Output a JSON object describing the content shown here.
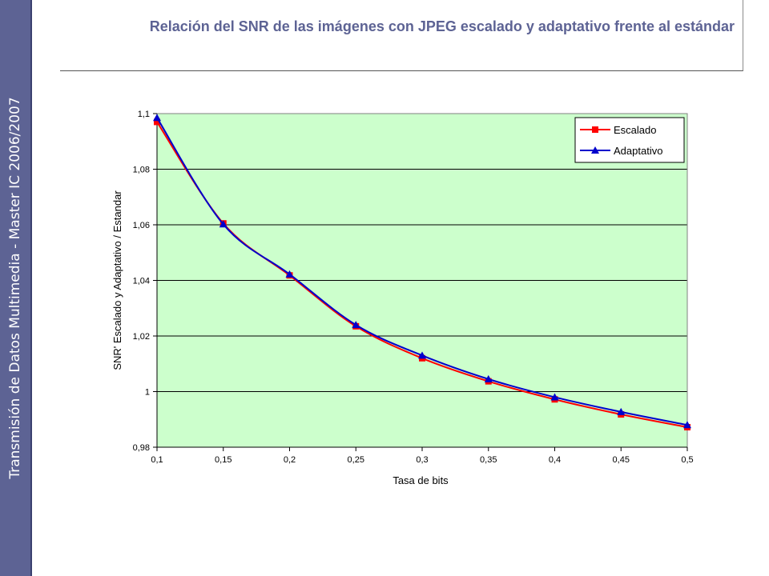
{
  "sidebar": {
    "text": "Transmisión de Datos Multimedia - Master IC 2006/2007"
  },
  "header": {
    "title": "Relación del SNR de las imágenes con JPEG escalado y adaptativo frente al estándar"
  },
  "chart_data": {
    "type": "line",
    "x": [
      0.1,
      0.15,
      0.2,
      0.25,
      0.3,
      0.35,
      0.4,
      0.45,
      0.5
    ],
    "x_tick_labels": [
      "0,1",
      "0,15",
      "0,2",
      "0,25",
      "0,3",
      "0,35",
      "0,4",
      "0,45",
      "0,5"
    ],
    "y_ticks": [
      0.98,
      1.0,
      1.02,
      1.04,
      1.06,
      1.08,
      1.1
    ],
    "y_tick_labels": [
      "0,98",
      "1",
      "1,02",
      "1,04",
      "1,06",
      "1,08",
      "1,1"
    ],
    "xlim": [
      0.1,
      0.5
    ],
    "ylim": [
      0.98,
      1.1
    ],
    "xlabel": "Tasa de bits",
    "ylabel": "SNR' Escalado y Adaptativo / Estandar",
    "grid": "horizontal",
    "legend_position": "top-right",
    "plot_background": "#ccffcc",
    "series": [
      {
        "name": "Escalado",
        "color": "#ff0000",
        "marker": "square",
        "values": [
          1.097,
          1.0605,
          1.0418,
          1.0235,
          1.012,
          1.0037,
          0.9972,
          0.9918,
          0.9872
        ]
      },
      {
        "name": "Adaptativo",
        "color": "#0000cc",
        "marker": "triangle",
        "values": [
          1.0985,
          1.0602,
          1.0422,
          1.024,
          1.013,
          1.0045,
          0.998,
          0.9927,
          0.988
        ]
      }
    ]
  }
}
